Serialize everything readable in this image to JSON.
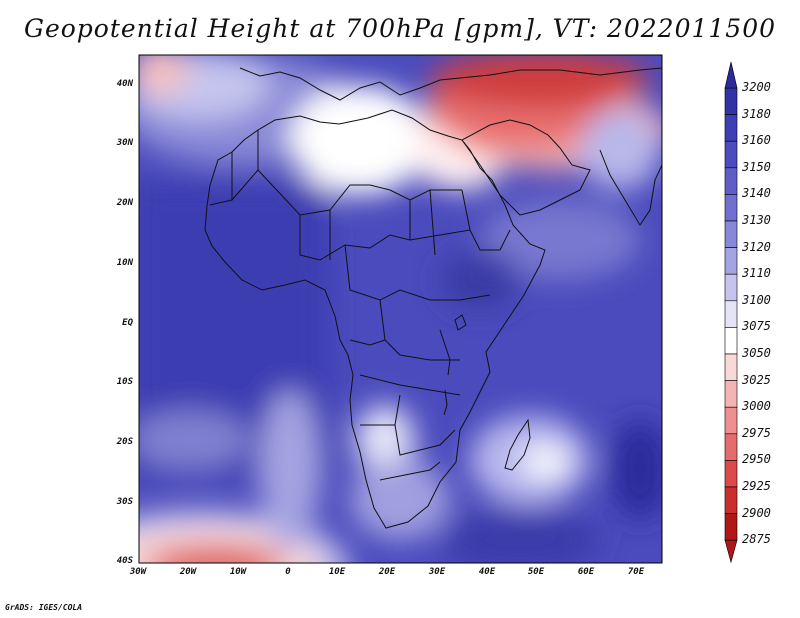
{
  "title": "Geopotential Height at 700hPa [gpm], VT: 2022011500",
  "credit": "GrADS: IGES/COLA",
  "chart_data": {
    "type": "heatmap",
    "variable": "Geopotential Height at 700hPa",
    "units": "gpm",
    "valid_time": "2022011500",
    "lon_range": [
      -30,
      75
    ],
    "lat_range": [
      -40,
      45
    ],
    "x_ticks": [
      "30W",
      "20W",
      "10W",
      "0",
      "10E",
      "20E",
      "30E",
      "40E",
      "50E",
      "60E",
      "70E"
    ],
    "y_ticks": [
      "40N",
      "30N",
      "20N",
      "10N",
      "EQ",
      "10S",
      "20S",
      "30S",
      "40S"
    ],
    "colorbar_levels": [
      "3200",
      "3180",
      "3160",
      "3150",
      "3140",
      "3130",
      "3120",
      "3110",
      "3100",
      "3075",
      "3050",
      "3025",
      "3000",
      "2975",
      "2950",
      "2925",
      "2900",
      "2875"
    ],
    "colorbar_colors": [
      "#2a2a9c",
      "#3333a8",
      "#3e3eb6",
      "#4c4cc0",
      "#5e5ec8",
      "#7070d0",
      "#8888da",
      "#a4a4e4",
      "#c4c4ee",
      "#e4e4f6",
      "#ffffff",
      "#fad8d8",
      "#f4b4b4",
      "#ee9090",
      "#e66c6c",
      "#dc4a4a",
      "#cc2e2e",
      "#b01818"
    ]
  }
}
